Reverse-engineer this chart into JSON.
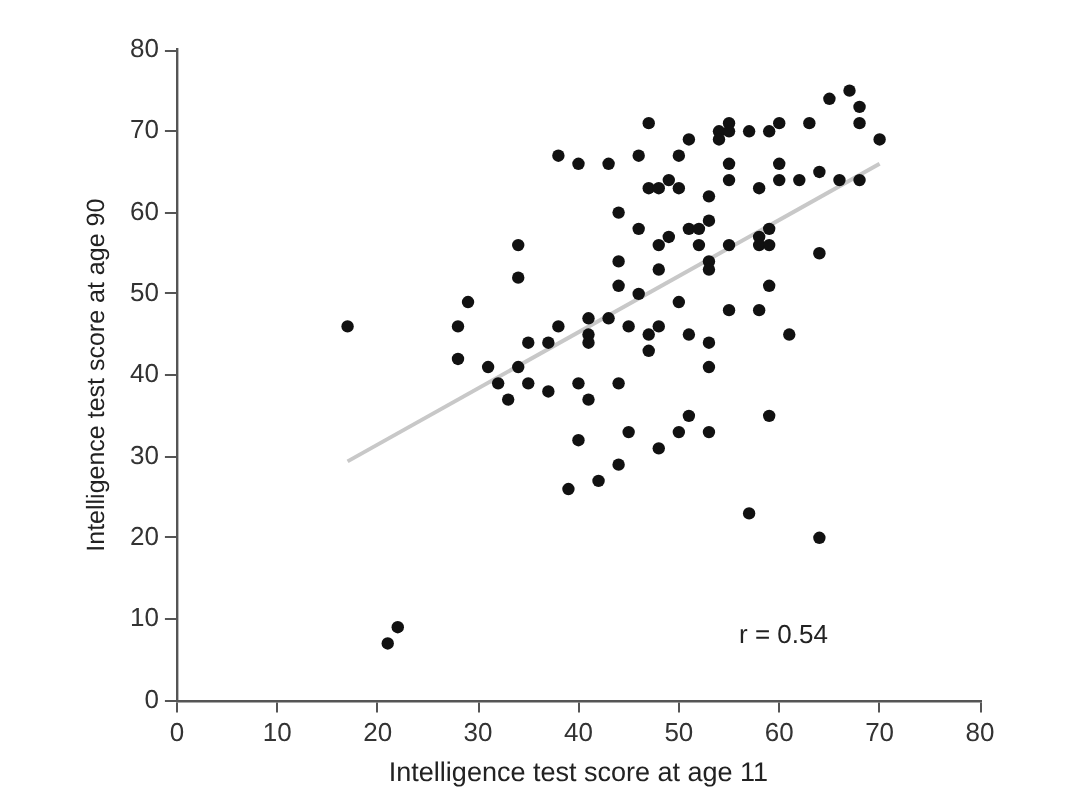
{
  "chart_data": {
    "type": "scatter",
    "xlabel": "Intelligence test score at age 11",
    "ylabel": "Intelligence test score at age 90",
    "xlim": [
      0,
      80
    ],
    "xticks": [
      0,
      10,
      20,
      30,
      40,
      50,
      60,
      70,
      80
    ],
    "ylim": [
      0,
      80
    ],
    "yticks": [
      0,
      10,
      20,
      30,
      40,
      50,
      60,
      70,
      80
    ],
    "marker": "circle",
    "annotations": [
      "r = 0.54"
    ],
    "series": [
      {
        "color": "#111111",
        "x": [
          17,
          21,
          22,
          28,
          28,
          29,
          31,
          32,
          33,
          34,
          34,
          34,
          35,
          35,
          37,
          37,
          38,
          38,
          39,
          40,
          40,
          40,
          41,
          41,
          41,
          41,
          42,
          43,
          43,
          44,
          44,
          44,
          44,
          44,
          45,
          45,
          46,
          46,
          46,
          47,
          47,
          47,
          47,
          48,
          48,
          48,
          48,
          48,
          49,
          49,
          50,
          50,
          50,
          50,
          51,
          51,
          51,
          51,
          52,
          52,
          53,
          53,
          53,
          53,
          53,
          53,
          53,
          54,
          54,
          55,
          55,
          55,
          55,
          55,
          55,
          57,
          57,
          58,
          58,
          58,
          58,
          59,
          59,
          59,
          59,
          59,
          60,
          60,
          60,
          61,
          62,
          63,
          64,
          64,
          64,
          65,
          66,
          67,
          68,
          68,
          68,
          70
        ],
        "values": [
          46,
          7,
          9,
          46,
          42,
          49,
          41,
          39,
          37,
          56,
          52,
          41,
          44,
          39,
          44,
          38,
          67,
          46,
          26,
          66,
          39,
          32,
          47,
          45,
          44,
          37,
          27,
          66,
          47,
          60,
          54,
          51,
          39,
          29,
          46,
          33,
          67,
          58,
          50,
          71,
          63,
          45,
          43,
          63,
          56,
          53,
          46,
          31,
          64,
          57,
          67,
          63,
          49,
          33,
          69,
          58,
          45,
          35,
          58,
          56,
          62,
          59,
          54,
          53,
          44,
          41,
          33,
          70,
          69,
          71,
          70,
          66,
          64,
          56,
          48,
          70,
          23,
          63,
          57,
          56,
          48,
          70,
          58,
          56,
          51,
          35,
          71,
          66,
          64,
          45,
          64,
          71,
          65,
          55,
          20,
          74,
          64,
          75,
          73,
          71,
          64,
          69
        ]
      },
      {
        "type": "line",
        "color": "#c8c8c8",
        "x": [
          17,
          70
        ],
        "values": [
          29.4,
          66
        ],
        "marker": "none"
      }
    ]
  }
}
